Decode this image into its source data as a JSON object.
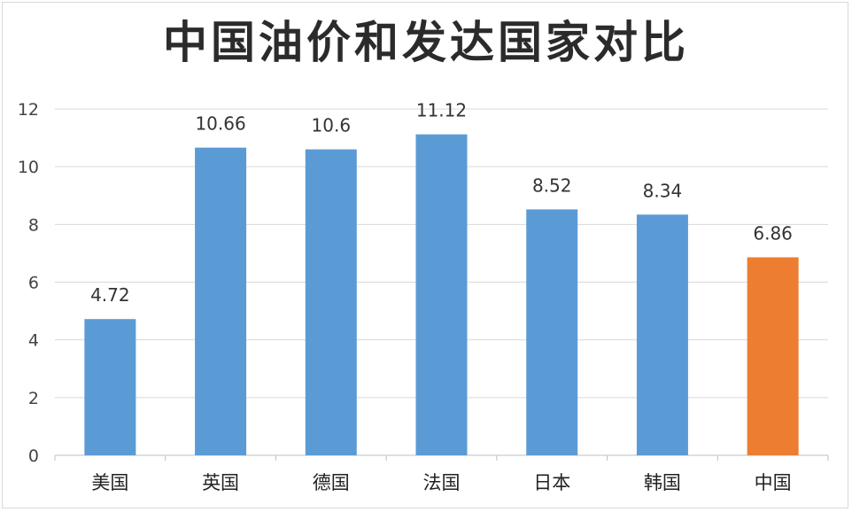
{
  "chart_data": {
    "type": "bar",
    "title": "中国油价和发达国家对比",
    "categories": [
      "美国",
      "英国",
      "德国",
      "法国",
      "日本",
      "韩国",
      "中国"
    ],
    "values": [
      4.72,
      10.66,
      10.6,
      11.12,
      8.52,
      8.34,
      6.86
    ],
    "value_labels": [
      "4.72",
      "10.66",
      "10.6",
      "11.12",
      "8.52",
      "8.34",
      "6.86"
    ],
    "yticks": [
      "0",
      "2",
      "4",
      "6",
      "8",
      "10",
      "12"
    ],
    "ylim": [
      0,
      12
    ],
    "grid": true,
    "legend": "none",
    "colors": {
      "default": "#5b9bd5",
      "highlight": "#ed7d31",
      "highlight_category": "中国"
    }
  }
}
